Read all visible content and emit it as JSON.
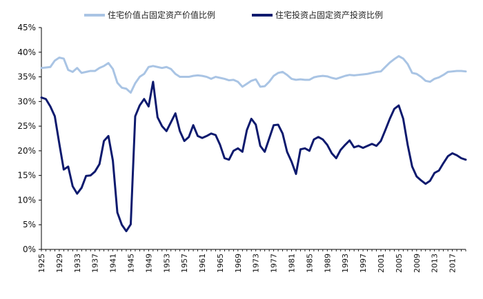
{
  "chart_data": {
    "type": "line",
    "title": "",
    "xlabel": "",
    "ylabel": "",
    "ylim": [
      0,
      45
    ],
    "xlim": [
      1925,
      2020
    ],
    "y_ticks": [
      "0%",
      "5%",
      "10%",
      "15%",
      "20%",
      "25%",
      "30%",
      "35%",
      "40%",
      "45%"
    ],
    "x_ticks": [
      "1925",
      "1929",
      "1933",
      "1937",
      "1941",
      "1945",
      "1949",
      "1953",
      "1957",
      "1961",
      "1965",
      "1969",
      "1973",
      "1977",
      "1981",
      "1985",
      "1989",
      "1993",
      "1997",
      "2001",
      "2005",
      "2009",
      "2013",
      "2017"
    ],
    "legend_position": "top",
    "grid": false,
    "series": [
      {
        "name": "住宅价值占固定资产价值比例",
        "color": "#a9c4e4",
        "x": [
          1925,
          1926,
          1927,
          1928,
          1929,
          1930,
          1931,
          1932,
          1933,
          1934,
          1935,
          1936,
          1937,
          1938,
          1939,
          1940,
          1941,
          1942,
          1943,
          1944,
          1945,
          1946,
          1947,
          1948,
          1949,
          1950,
          1951,
          1952,
          1953,
          1954,
          1955,
          1956,
          1957,
          1958,
          1959,
          1960,
          1961,
          1962,
          1963,
          1964,
          1965,
          1966,
          1967,
          1968,
          1969,
          1970,
          1971,
          1972,
          1973,
          1974,
          1975,
          1976,
          1977,
          1978,
          1979,
          1980,
          1981,
          1982,
          1983,
          1984,
          1985,
          1986,
          1987,
          1988,
          1989,
          1990,
          1991,
          1992,
          1993,
          1994,
          1995,
          1996,
          1997,
          1998,
          1999,
          2000,
          2001,
          2002,
          2003,
          2004,
          2005,
          2006,
          2007,
          2008,
          2009,
          2010,
          2011,
          2012,
          2013,
          2014,
          2015,
          2016,
          2017,
          2018,
          2019,
          2020
        ],
        "values": [
          36.8,
          36.9,
          37.0,
          38.3,
          38.9,
          38.7,
          36.4,
          36.0,
          36.8,
          35.8,
          36.0,
          36.2,
          36.2,
          36.8,
          37.2,
          37.8,
          36.6,
          33.8,
          32.8,
          32.6,
          31.8,
          33.7,
          35.0,
          35.6,
          37.0,
          37.2,
          37.0,
          36.8,
          37.0,
          36.6,
          35.6,
          35.0,
          35.0,
          35.0,
          35.2,
          35.3,
          35.2,
          35.0,
          34.6,
          35.0,
          34.8,
          34.6,
          34.3,
          34.4,
          34.0,
          33.0,
          33.6,
          34.2,
          34.5,
          33.0,
          33.1,
          34.0,
          35.2,
          35.8,
          36.0,
          35.4,
          34.6,
          34.4,
          34.5,
          34.4,
          34.4,
          34.9,
          35.1,
          35.2,
          35.1,
          34.8,
          34.6,
          34.9,
          35.2,
          35.4,
          35.3,
          35.4,
          35.5,
          35.6,
          35.8,
          36.0,
          36.1,
          37.0,
          37.9,
          38.6,
          39.2,
          38.7,
          37.6,
          35.8,
          35.6,
          35.0,
          34.2,
          34.0,
          34.6,
          34.9,
          35.4,
          36.0,
          36.1,
          36.2,
          36.2,
          36.1
        ]
      },
      {
        "name": "住宅投资占固定资产投资比例",
        "color": "#0d1a6e",
        "x": [
          1925,
          1926,
          1927,
          1928,
          1929,
          1930,
          1931,
          1932,
          1933,
          1934,
          1935,
          1936,
          1937,
          1938,
          1939,
          1940,
          1941,
          1942,
          1943,
          1944,
          1945,
          1946,
          1947,
          1948,
          1949,
          1950,
          1951,
          1952,
          1953,
          1954,
          1955,
          1956,
          1957,
          1958,
          1959,
          1960,
          1961,
          1962,
          1963,
          1964,
          1965,
          1966,
          1967,
          1968,
          1969,
          1970,
          1971,
          1972,
          1973,
          1974,
          1975,
          1976,
          1977,
          1978,
          1979,
          1980,
          1981,
          1982,
          1983,
          1984,
          1985,
          1986,
          1987,
          1988,
          1989,
          1990,
          1991,
          1992,
          1993,
          1994,
          1995,
          1996,
          1997,
          1998,
          1999,
          2000,
          2001,
          2002,
          2003,
          2004,
          2005,
          2006,
          2007,
          2008,
          2009,
          2010,
          2011,
          2012,
          2013,
          2014,
          2015,
          2016,
          2017,
          2018,
          2019,
          2020
        ],
        "values": [
          30.8,
          30.5,
          29.0,
          27.0,
          21.5,
          16.2,
          16.8,
          12.8,
          11.3,
          12.5,
          14.9,
          15.0,
          15.8,
          17.3,
          22.0,
          23.0,
          18.0,
          7.5,
          5.0,
          3.7,
          5.1,
          27.0,
          29.2,
          30.5,
          29.0,
          34.0,
          26.8,
          25.0,
          24.0,
          25.8,
          27.6,
          24.0,
          22.0,
          22.8,
          25.2,
          23.0,
          22.6,
          23.0,
          23.5,
          23.2,
          21.2,
          18.5,
          18.2,
          20.0,
          20.5,
          19.8,
          24.2,
          26.5,
          25.3,
          21.0,
          19.8,
          22.5,
          25.2,
          25.3,
          23.5,
          19.8,
          17.8,
          15.3,
          20.3,
          20.5,
          20.0,
          22.3,
          22.8,
          22.3,
          21.2,
          19.5,
          18.5,
          20.2,
          21.2,
          22.1,
          20.7,
          21.0,
          20.6,
          21.0,
          21.4,
          21.0,
          22.0,
          24.2,
          26.5,
          28.5,
          29.2,
          26.5,
          21.2,
          16.8,
          14.8,
          14.0,
          13.3,
          13.9,
          15.5,
          16.0,
          17.5,
          18.9,
          19.5,
          19.1,
          18.5,
          18.2
        ]
      }
    ]
  }
}
